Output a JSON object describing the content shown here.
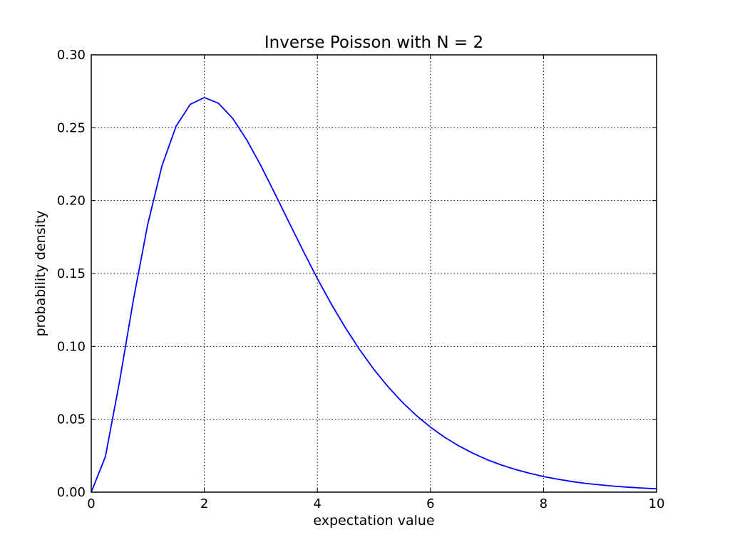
{
  "chart_data": {
    "type": "line",
    "title": "Inverse Poisson with N = 2",
    "xlabel": "expectation value",
    "ylabel": "probability density",
    "xlim": [
      0,
      10
    ],
    "ylim": [
      0,
      0.3
    ],
    "xticks": [
      0,
      2,
      4,
      6,
      8,
      10
    ],
    "xtick_labels": [
      "0",
      "2",
      "4",
      "6",
      "8",
      "10"
    ],
    "yticks": [
      0.0,
      0.05,
      0.1,
      0.15,
      0.2,
      0.25,
      0.3
    ],
    "ytick_labels": [
      "0.00",
      "0.05",
      "0.10",
      "0.15",
      "0.20",
      "0.25",
      "0.30"
    ],
    "grid": true,
    "series": [
      {
        "color": "#0000ff",
        "x": [
          0,
          0.25,
          0.5,
          0.75,
          1.0,
          1.25,
          1.5,
          1.75,
          2.0,
          2.25,
          2.5,
          2.75,
          3.0,
          3.25,
          3.5,
          3.75,
          4.0,
          4.25,
          4.5,
          4.75,
          5.0,
          5.25,
          5.5,
          5.75,
          6.0,
          6.25,
          6.5,
          6.75,
          7.0,
          7.25,
          7.5,
          7.75,
          8.0,
          8.25,
          8.5,
          8.75,
          9.0,
          9.25,
          9.5,
          9.75,
          10.0
        ],
        "y": [
          0.0,
          0.0243,
          0.0758,
          0.1329,
          0.1839,
          0.2238,
          0.251,
          0.266,
          0.2707,
          0.2668,
          0.2565,
          0.2417,
          0.224,
          0.2047,
          0.185,
          0.1654,
          0.1465,
          0.1288,
          0.1125,
          0.0976,
          0.0842,
          0.0723,
          0.0618,
          0.0526,
          0.0446,
          0.0377,
          0.0318,
          0.0267,
          0.0223,
          0.0187,
          0.0156,
          0.013,
          0.0107,
          0.0089,
          0.0073,
          0.006,
          0.005,
          0.0041,
          0.0034,
          0.0028,
          0.0023
        ]
      }
    ]
  }
}
